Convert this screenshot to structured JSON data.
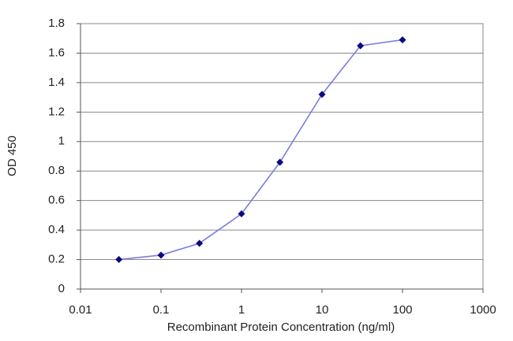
{
  "chart_data": {
    "type": "line",
    "x_label": "Recombinant Protein Concentration (ng/ml)",
    "y_label": "OD 450",
    "x": [
      0.03,
      0.1,
      0.3,
      1,
      3,
      10,
      30,
      100
    ],
    "series": [
      {
        "color": "#7c7ce0",
        "marker_color": "#0a0a80",
        "values": [
          0.2,
          0.23,
          0.31,
          0.51,
          0.86,
          1.32,
          1.65,
          1.69
        ]
      }
    ],
    "xscale": "log",
    "xlim": [
      0.01,
      1000
    ],
    "xticks": [
      0.01,
      0.1,
      1,
      10,
      100,
      1000
    ],
    "ylim": [
      0,
      1.8
    ],
    "yticks": [
      0,
      0.2,
      0.4,
      0.6,
      0.8,
      1,
      1.2,
      1.4,
      1.6,
      1.8
    ],
    "grid": true
  }
}
